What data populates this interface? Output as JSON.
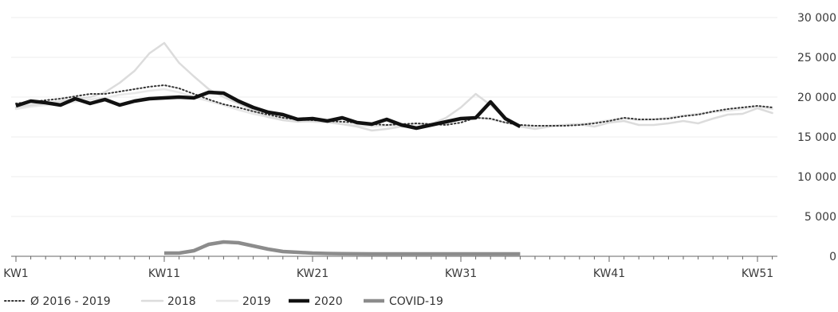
{
  "chart_data": {
    "type": "line",
    "x_tick_labels": [
      "KW1",
      "KW11",
      "KW21",
      "KW31",
      "KW41",
      "KW51"
    ],
    "y_tick_labels": [
      "30 000",
      "25 000",
      "20 000",
      "15 000",
      "10 000",
      "5 000",
      "0"
    ],
    "y_ticks": [
      30000,
      25000,
      20000,
      15000,
      10000,
      5000,
      0
    ],
    "ylim": [
      0,
      30000
    ],
    "xlim": [
      1,
      52
    ],
    "grid": true,
    "legend_position": "bottom-left",
    "series": [
      {
        "name": "Ø 2016 - 2019",
        "style": "dotted",
        "color": "#333333",
        "x": [
          1,
          2,
          3,
          4,
          5,
          6,
          7,
          8,
          9,
          10,
          11,
          12,
          13,
          14,
          15,
          16,
          17,
          18,
          19,
          20,
          21,
          22,
          23,
          24,
          25,
          26,
          27,
          28,
          29,
          30,
          31,
          32,
          33,
          34,
          35,
          36,
          37,
          38,
          39,
          40,
          41,
          42,
          43,
          44,
          45,
          46,
          47,
          48,
          49,
          50,
          51,
          52
        ],
        "values": [
          19200,
          19400,
          19600,
          19800,
          20100,
          20400,
          20400,
          20700,
          21000,
          21300,
          21500,
          21100,
          20400,
          19700,
          19100,
          18700,
          18200,
          17800,
          17400,
          17200,
          17100,
          17000,
          16900,
          16800,
          16600,
          16500,
          16600,
          16700,
          16600,
          16500,
          16800,
          17400,
          17300,
          16800,
          16500,
          16400,
          16400,
          16400,
          16500,
          16700,
          17000,
          17400,
          17200,
          17200,
          17300,
          17600,
          17800,
          18200,
          18500,
          18700,
          18900,
          18700
        ]
      },
      {
        "name": "2018",
        "style": "solid",
        "color": "#dcdcdc",
        "x": [
          1,
          2,
          3,
          4,
          5,
          6,
          7,
          8,
          9,
          10,
          11,
          12,
          13,
          14,
          15,
          16,
          17,
          18,
          19,
          20,
          21,
          22,
          23,
          24,
          25,
          26,
          27,
          28,
          29,
          30,
          31,
          32,
          33,
          34,
          35,
          36,
          37,
          38,
          39,
          40,
          41,
          42,
          43,
          44,
          45,
          46,
          47,
          48,
          49,
          50,
          51,
          52
        ],
        "values": [
          18700,
          19000,
          19200,
          19500,
          19800,
          20000,
          20600,
          21800,
          23300,
          25500,
          26800,
          24300,
          22600,
          21000,
          20000,
          19200,
          18300,
          17500,
          17100,
          16900,
          17000,
          16900,
          16600,
          16300,
          15800,
          16000,
          16300,
          16200,
          16600,
          17400,
          18700,
          20400,
          19000,
          17300,
          16300,
          16000,
          16300,
          16500,
          16600,
          16300,
          16800,
          17000,
          16500,
          16500,
          16700,
          17000,
          16700,
          17300,
          17800,
          17900,
          18600,
          18000
        ]
      },
      {
        "name": "2019",
        "style": "solid",
        "color": "#e8e8e8",
        "x": [
          1,
          2,
          3,
          4,
          5,
          6,
          7,
          8,
          9,
          10,
          11,
          12,
          13,
          14,
          15,
          16,
          17,
          18,
          19,
          20,
          21,
          22,
          23,
          24,
          25,
          26,
          27,
          28,
          29,
          30,
          31,
          32,
          33,
          34,
          35,
          36,
          37,
          38,
          39,
          40,
          41,
          42,
          43,
          44,
          45,
          46,
          47,
          48,
          49,
          50,
          51,
          52
        ],
        "values": [
          18500,
          18800,
          19000,
          19200,
          19400,
          19700,
          19900,
          20300,
          20500,
          20800,
          21000,
          20600,
          20000,
          19500,
          19000,
          18400,
          17900,
          17500,
          17200,
          17000,
          16900,
          16800,
          16600,
          16500,
          16300,
          16400,
          16500,
          16600,
          16700,
          16900,
          17300,
          17500,
          17200,
          16800,
          16400,
          16300,
          16400,
          16500,
          16600,
          16800,
          17100,
          17300,
          17100,
          17200,
          17400,
          17700,
          17900,
          18100,
          18300,
          18500,
          18800,
          18500
        ]
      },
      {
        "name": "2020",
        "style": "solid-bold",
        "color": "#111111",
        "x": [
          1,
          2,
          3,
          4,
          5,
          6,
          7,
          8,
          9,
          10,
          11,
          12,
          13,
          14,
          15,
          16,
          17,
          18,
          19,
          20,
          21,
          22,
          23,
          24,
          25,
          26,
          27,
          28,
          29,
          30,
          31,
          32,
          33,
          34,
          35
        ],
        "values": [
          18900,
          19500,
          19300,
          19000,
          19800,
          19200,
          19700,
          19000,
          19500,
          19800,
          19900,
          20000,
          19900,
          20600,
          20500,
          19500,
          18700,
          18100,
          17800,
          17200,
          17300,
          17000,
          17400,
          16800,
          16600,
          17200,
          16500,
          16100,
          16500,
          16900,
          17300,
          17400,
          19400,
          17300,
          16300
        ]
      },
      {
        "name": "COVID-19",
        "style": "solid-bold",
        "color": "#8c8c8c",
        "x": [
          11,
          12,
          13,
          14,
          15,
          16,
          17,
          18,
          19,
          20,
          21,
          22,
          23,
          24,
          25,
          26,
          27,
          28,
          29,
          30,
          31,
          32,
          33,
          34,
          35
        ],
        "values": [
          400,
          400,
          700,
          1500,
          1800,
          1700,
          1300,
          900,
          600,
          500,
          400,
          350,
          320,
          310,
          300,
          300,
          300,
          300,
          300,
          300,
          300,
          300,
          300,
          300,
          300
        ]
      }
    ]
  }
}
